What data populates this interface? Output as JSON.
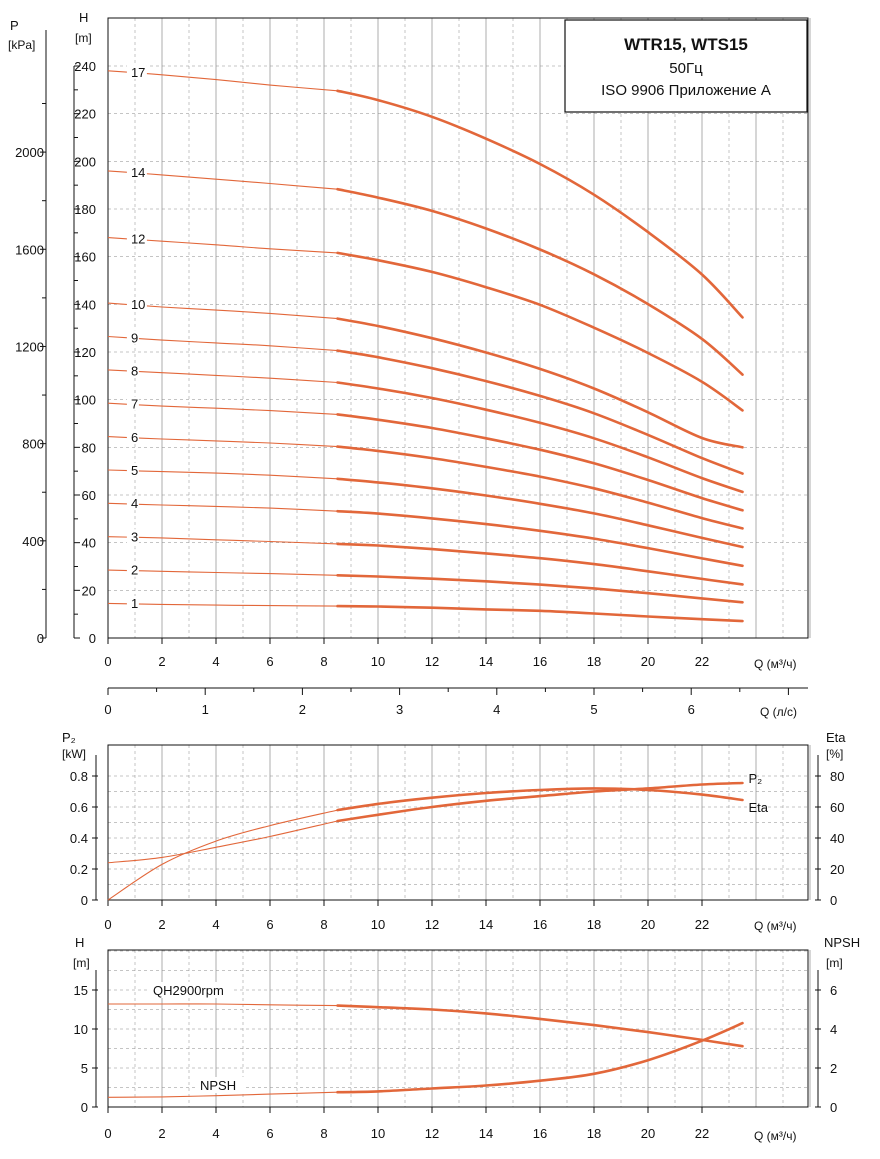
{
  "title": {
    "model": "WTR15, WTS15",
    "frequency": "50Гц",
    "standard": "ISO 9906 Приложение A"
  },
  "colors": {
    "curve": "#e2673a",
    "grid": "#8a8a8a",
    "axis": "#111111"
  },
  "chart_data": [
    {
      "type": "line",
      "name_id": "qh-stage-curves",
      "y_label": "H",
      "y_unit": "[m]",
      "y2_label": "P",
      "y2_unit": "[kPa]",
      "x_unit": "Q (м³/ч)",
      "x2_unit": "Q (л/с)",
      "xlim": [
        0,
        26
      ],
      "ylim": [
        0,
        240
      ],
      "x_ticks": [
        "0",
        "2",
        "4",
        "6",
        "8",
        "10",
        "12",
        "14",
        "16",
        "18",
        "20",
        "22"
      ],
      "y_ticks": [
        "0",
        "20",
        "40",
        "60",
        "80",
        "100",
        "120",
        "140",
        "160",
        "180",
        "200",
        "220",
        "240"
      ],
      "y2_ticks": [
        "0",
        "400",
        "800",
        "1200",
        "1600",
        "2000"
      ],
      "x2_ticks": [
        "0",
        "1",
        "2",
        "3",
        "4",
        "5",
        "6"
      ],
      "grid": true,
      "x": [
        0,
        2,
        4,
        6,
        8.5,
        10,
        12,
        14,
        16,
        18,
        20,
        22,
        23.5
      ],
      "series": [
        {
          "name": "1",
          "values": [
            14.5,
            14.1,
            13.8,
            13.6,
            13.4,
            13.2,
            12.7,
            12.0,
            11.4,
            10.3,
            9.0,
            7.9,
            7.1
          ]
        },
        {
          "name": "2",
          "values": [
            28.5,
            28,
            27.5,
            27,
            26.3,
            25.8,
            24.9,
            23.8,
            22.4,
            20.8,
            18.8,
            16.6,
            15.0
          ]
        },
        {
          "name": "3",
          "values": [
            42.5,
            42,
            41.2,
            40.5,
            39.5,
            38.8,
            37.3,
            35.5,
            33.5,
            31,
            28,
            24.8,
            22.5
          ]
        },
        {
          "name": "4",
          "values": [
            56.5,
            55.8,
            55.2,
            54.5,
            53.2,
            52.2,
            50.2,
            47.8,
            45,
            41.7,
            37.7,
            33.4,
            30.3
          ]
        },
        {
          "name": "5",
          "values": [
            70.5,
            69.8,
            69.2,
            68.3,
            66.8,
            65.3,
            62.8,
            59.8,
            56.3,
            52.3,
            47.3,
            42,
            38.2
          ]
        },
        {
          "name": "6",
          "values": [
            84.5,
            83.5,
            82.7,
            81.8,
            80.3,
            78.5,
            75.5,
            71.8,
            67.7,
            62.8,
            56.8,
            50.3,
            46
          ]
        },
        {
          "name": "7",
          "values": [
            98.5,
            97.3,
            96.4,
            95.4,
            93.8,
            91.6,
            88.1,
            83.8,
            79,
            73.3,
            66.3,
            58.7,
            53.6
          ]
        },
        {
          "name": "8",
          "values": [
            112.5,
            111.3,
            110.2,
            109,
            107.2,
            104.7,
            100.7,
            95.8,
            90.3,
            83.8,
            75.8,
            67.1,
            61.3
          ]
        },
        {
          "name": "9",
          "values": [
            126.5,
            125,
            123.8,
            122.6,
            120.6,
            117.8,
            113.2,
            107.8,
            101.6,
            94.3,
            85.2,
            75.5,
            69
          ]
        },
        {
          "name": "10",
          "values": [
            140.5,
            138.9,
            137.6,
            136.2,
            134,
            130.9,
            125.8,
            119.8,
            112.9,
            104.7,
            94.7,
            83.9,
            80
          ]
        },
        {
          "name": "12",
          "values": [
            168,
            166.5,
            165,
            163.3,
            161.6,
            158.5,
            153.6,
            147.2,
            139.8,
            130.2,
            119.6,
            107.5,
            95.5
          ]
        },
        {
          "name": "14",
          "values": [
            196,
            194.3,
            192.5,
            190.7,
            188.3,
            184.8,
            179.2,
            171.8,
            163,
            152.6,
            140.1,
            125.5,
            110.5
          ]
        },
        {
          "name": "17",
          "values": [
            238,
            236.3,
            234.3,
            232,
            229.6,
            225.7,
            218.7,
            209.5,
            198.9,
            186,
            170.3,
            152.5,
            134.5
          ]
        }
      ]
    },
    {
      "type": "line",
      "name_id": "power-efficiency",
      "y_label": "P₂",
      "y_unit": "[kW]",
      "y2_label": "Eta",
      "y2_unit": "[%]",
      "x_unit": "Q (м³/ч)",
      "xlim": [
        0,
        26
      ],
      "ylim": [
        0,
        0.8
      ],
      "y2lim": [
        0,
        80
      ],
      "x_ticks": [
        "0",
        "2",
        "4",
        "6",
        "8",
        "10",
        "12",
        "14",
        "16",
        "18",
        "20",
        "22"
      ],
      "y_ticks": [
        "0",
        "0.2",
        "0.4",
        "0.6",
        "0.8"
      ],
      "y2_ticks": [
        "0",
        "20",
        "40",
        "60",
        "80"
      ],
      "grid": true,
      "x": [
        0,
        2,
        4,
        6,
        8.5,
        10,
        12,
        14,
        16,
        18,
        20,
        22,
        23.5
      ],
      "series": [
        {
          "name": "P₂",
          "axis": "left",
          "values": [
            0.24,
            0.275,
            0.34,
            0.41,
            0.51,
            0.55,
            0.6,
            0.64,
            0.67,
            0.7,
            0.72,
            0.745,
            0.755
          ]
        },
        {
          "name": "Eta",
          "axis": "right",
          "values": [
            0,
            23,
            38,
            48,
            58,
            62,
            66,
            69,
            71,
            72,
            71,
            68,
            64.5
          ]
        }
      ]
    },
    {
      "type": "line",
      "name_id": "qh-npsh",
      "y_label": "H",
      "y_unit": "[m]",
      "y2_label": "NPSH",
      "y2_unit": "[m]",
      "x_unit": "Q (м³/ч)",
      "xlim": [
        0,
        26
      ],
      "ylim": [
        0,
        20
      ],
      "y2lim": [
        0,
        8
      ],
      "x_ticks": [
        "0",
        "2",
        "4",
        "6",
        "8",
        "10",
        "12",
        "14",
        "16",
        "18",
        "20",
        "22"
      ],
      "y_ticks": [
        "0",
        "5",
        "10",
        "15"
      ],
      "y2_ticks": [
        "0",
        "2",
        "4",
        "6"
      ],
      "grid": true,
      "x": [
        0,
        2,
        4,
        6,
        8.5,
        10,
        12,
        14,
        16,
        18,
        20,
        22,
        23.5
      ],
      "series": [
        {
          "name": "QH2900rpm",
          "axis": "left",
          "values": [
            13.2,
            13.2,
            13.2,
            13.1,
            13.0,
            12.8,
            12.5,
            12.0,
            11.3,
            10.5,
            9.6,
            8.6,
            7.8
          ]
        },
        {
          "name": "NPSH",
          "axis": "right",
          "values": [
            0.5,
            0.52,
            0.58,
            0.66,
            0.76,
            0.8,
            0.95,
            1.1,
            1.35,
            1.7,
            2.4,
            3.4,
            4.3
          ]
        }
      ]
    }
  ]
}
